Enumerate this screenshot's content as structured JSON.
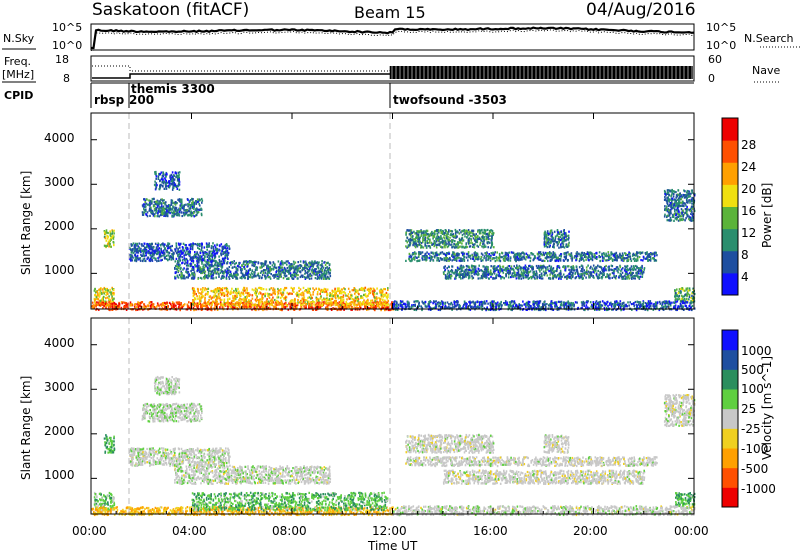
{
  "header": {
    "radar": "Saskatoon (fitACF)",
    "beam": "Beam 15",
    "date": "04/Aug/2016"
  },
  "top_panels": {
    "nsky_label": "N.Sky",
    "nsky_ticks": [
      "10^5",
      "10^0"
    ],
    "nsearch_label": "N.Search",
    "nsearch_ticks": [
      "10^5",
      "10^0"
    ],
    "freq_label": "Freq.",
    "freq_unit": "[MHz]",
    "freq_ticks": [
      "18",
      "8"
    ],
    "nave_label": "Nave",
    "nave_ticks": [
      "60",
      "0"
    ],
    "cpid_label": "CPID",
    "cpid_segments": [
      {
        "name": "rbsp",
        "start_h": 0,
        "end_h": 1.5
      },
      {
        "name": "200",
        "start_h": 1.5,
        "end_h": 1.55
      },
      {
        "name": "themis 3300",
        "start_h": 1.5,
        "end_h": 12
      },
      {
        "name": "twofsound -3503",
        "start_h": 12,
        "end_h": 24
      }
    ]
  },
  "time_axis": {
    "label": "Time UT",
    "ticks": [
      "00:00",
      "04:00",
      "08:00",
      "12:00",
      "16:00",
      "20:00",
      "00:00"
    ]
  },
  "power_panel": {
    "ylabel": "Slant Range [km]",
    "yticks": [
      "4000",
      "3000",
      "2000",
      "1000"
    ],
    "colorbar_label": "Power [dB]",
    "colorbar_ticks": [
      "28",
      "24",
      "20",
      "16",
      "12",
      "8",
      "4"
    ],
    "colors": [
      "#1010ff",
      "#1e4fa0",
      "#2a8e6e",
      "#5bb33a",
      "#f0e010",
      "#ffa000",
      "#ff5000",
      "#ee0000"
    ]
  },
  "velocity_panel": {
    "ylabel": "Slant Range [km]",
    "yticks": [
      "4000",
      "3000",
      "2000",
      "1000"
    ],
    "colorbar_label": "Velocity [m s^-1]",
    "colorbar_ticks": [
      "1000",
      "500",
      "100",
      "25",
      "-25",
      "-100",
      "-500",
      "-1000"
    ],
    "colors": [
      "#1010ff",
      "#1e4fa0",
      "#2a8e5e",
      "#5fd040",
      "#c8c8c8",
      "#f0d020",
      "#ffa000",
      "#ff5000",
      "#ee0000"
    ]
  },
  "chart_data": {
    "type": "heatmap",
    "x_unit": "hours UT",
    "xlim": [
      0,
      24
    ],
    "ylim": [
      200,
      4600
    ],
    "y_unit": "km",
    "dashed_markers_h": [
      1.5,
      12
    ],
    "scatter_bands": [
      {
        "t0": 0.1,
        "t1": 0.9,
        "r0": 300,
        "r1": 700,
        "power_db": 18,
        "velocity": 60
      },
      {
        "t0": 0.5,
        "t1": 0.9,
        "r0": 1600,
        "r1": 2000,
        "power_db": 16,
        "velocity": 120
      },
      {
        "t0": 0.0,
        "t1": 12.0,
        "r0": 200,
        "r1": 380,
        "power_db": 26,
        "velocity": -100
      },
      {
        "t0": 4.0,
        "t1": 11.8,
        "r0": 300,
        "r1": 700,
        "power_db": 20,
        "velocity": 80
      },
      {
        "t0": 2.0,
        "t1": 4.4,
        "r0": 2300,
        "r1": 2700,
        "power_db": 8,
        "velocity": 10
      },
      {
        "t0": 2.5,
        "t1": 3.5,
        "r0": 2900,
        "r1": 3300,
        "power_db": 6,
        "velocity": 10
      },
      {
        "t0": 3.3,
        "t1": 9.5,
        "r0": 900,
        "r1": 1300,
        "power_db": 8,
        "velocity": 5
      },
      {
        "t0": 1.5,
        "t1": 5.5,
        "r0": 1300,
        "r1": 1700,
        "power_db": 6,
        "velocity": 5
      },
      {
        "t0": 12.5,
        "t1": 22.5,
        "r0": 1300,
        "r1": 1500,
        "power_db": 8,
        "velocity": 0
      },
      {
        "t0": 14.0,
        "t1": 22.0,
        "r0": 900,
        "r1": 1200,
        "power_db": 8,
        "velocity": 0
      },
      {
        "t0": 12.5,
        "t1": 16.0,
        "r0": 1600,
        "r1": 2000,
        "power_db": 10,
        "velocity": 0
      },
      {
        "t0": 18.0,
        "t1": 19.0,
        "r0": 1600,
        "r1": 2000,
        "power_db": 8,
        "velocity": 0
      },
      {
        "t0": 22.8,
        "t1": 24.0,
        "r0": 2200,
        "r1": 2900,
        "power_db": 8,
        "velocity": 0
      },
      {
        "t0": 23.2,
        "t1": 24.0,
        "r0": 400,
        "r1": 700,
        "power_db": 12,
        "velocity": 100
      },
      {
        "t0": 12.0,
        "t1": 24.0,
        "r0": 200,
        "r1": 400,
        "power_db": 6,
        "velocity": 5
      }
    ]
  }
}
